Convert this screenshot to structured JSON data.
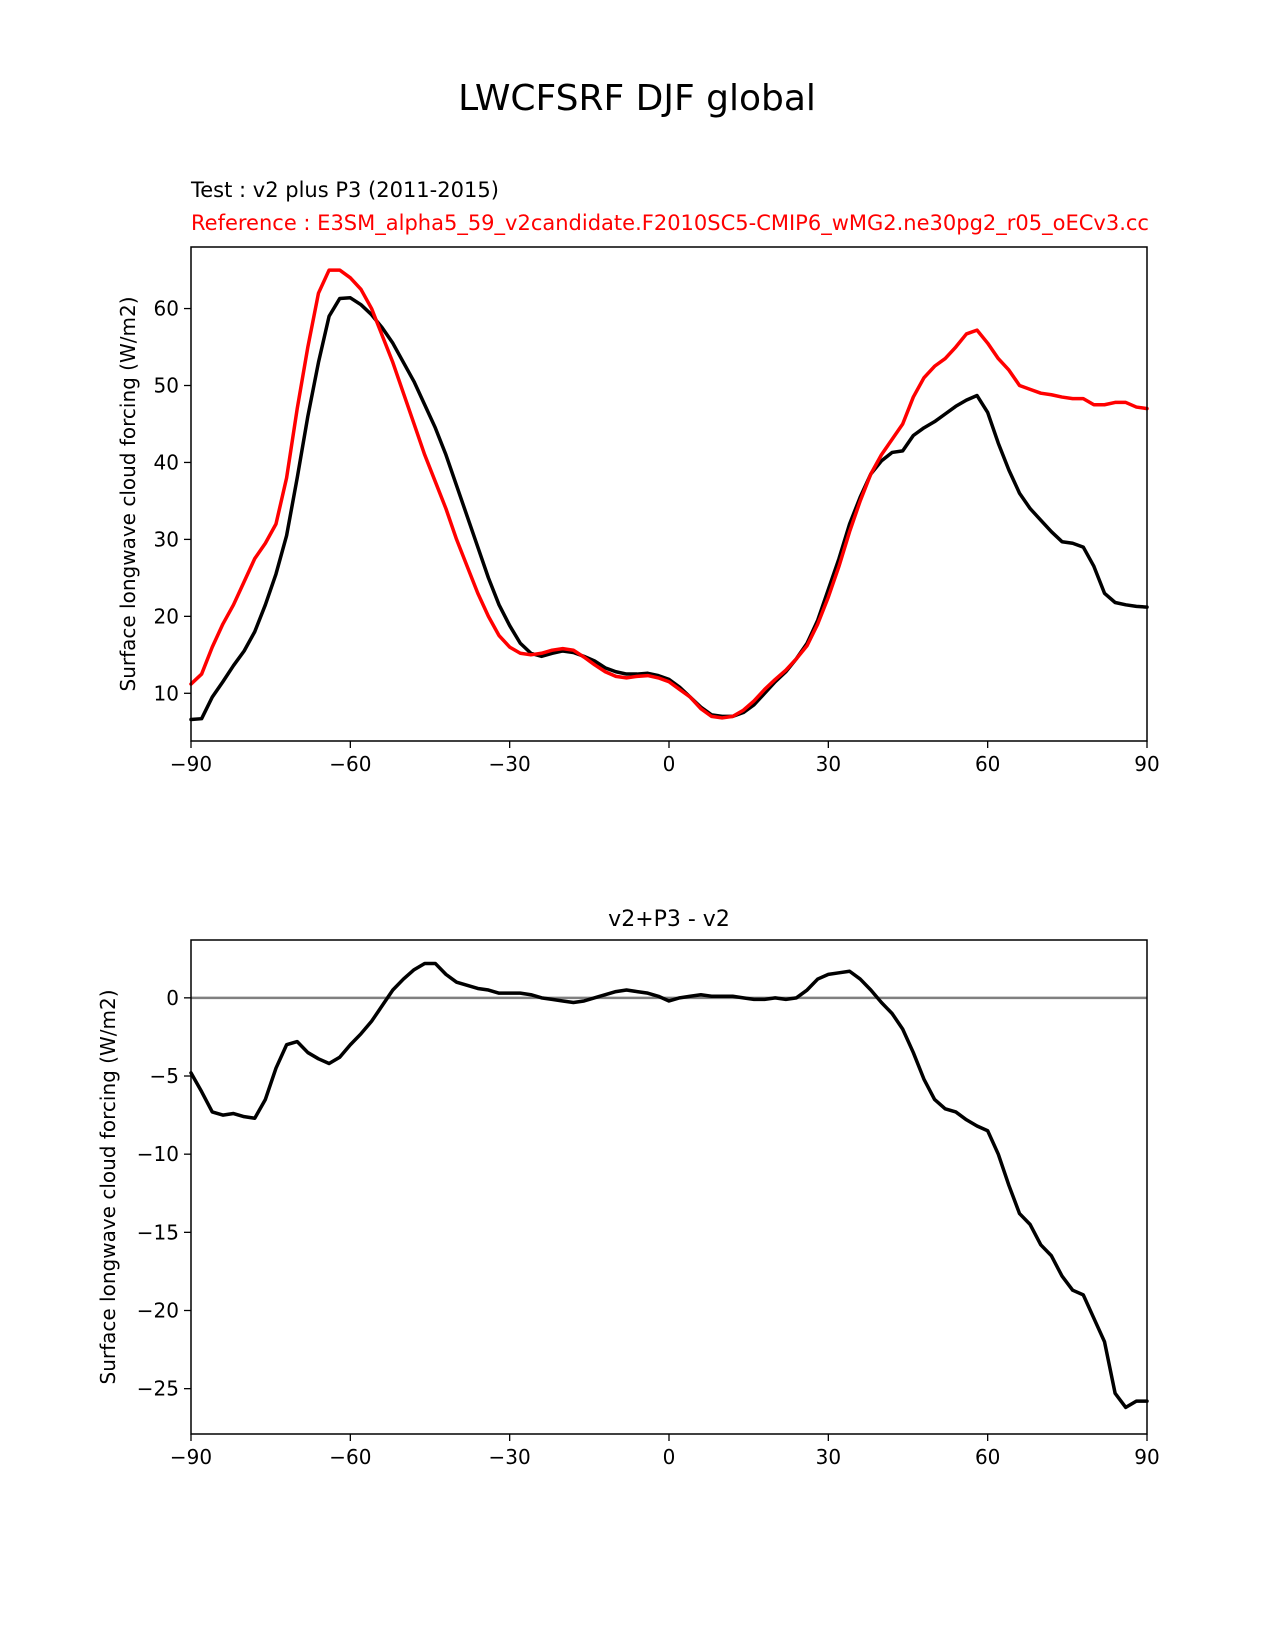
{
  "figure_title": "LWCFSRF DJF global",
  "chart_data": [
    {
      "type": "line",
      "subtitle_test": "Test : v2 plus P3 (2011-2015)",
      "subtitle_reference": "Reference : E3SM_alpha5_59_v2candidate.F2010SC5-CMIP6_wMG2.ne30pg2_r05_oECv3.cc",
      "xlabel": "",
      "ylabel": "Surface longwave cloud forcing (W/m2)",
      "xlim": [
        -90,
        90
      ],
      "ylim": [
        3.8,
        68
      ],
      "xticks": [
        "−90",
        "−60",
        "−30",
        "0",
        "30",
        "60",
        "90"
      ],
      "yticks": [
        "10",
        "20",
        "30",
        "40",
        "50",
        "60"
      ],
      "grid": false,
      "series": [
        {
          "name": "Test : v2 plus P3 (2011-2015)",
          "color": "#000000",
          "x": [
            -90,
            -88,
            -86,
            -84,
            -82,
            -80,
            -78,
            -76,
            -74,
            -72,
            -70,
            -68,
            -66,
            -64,
            -62,
            -60,
            -58,
            -56,
            -54,
            -52,
            -50,
            -48,
            -46,
            -44,
            -42,
            -40,
            -38,
            -36,
            -34,
            -32,
            -30,
            -28,
            -26,
            -24,
            -22,
            -20,
            -18,
            -16,
            -14,
            -12,
            -10,
            -8,
            -6,
            -4,
            -2,
            0,
            2,
            4,
            6,
            8,
            10,
            12,
            14,
            16,
            18,
            20,
            22,
            24,
            26,
            28,
            30,
            32,
            34,
            36,
            38,
            40,
            42,
            44,
            46,
            48,
            50,
            52,
            54,
            56,
            58,
            60,
            62,
            64,
            66,
            68,
            70,
            72,
            74,
            76,
            78,
            80,
            82,
            84,
            86,
            88,
            90
          ],
          "values": [
            6.6,
            6.7,
            9.5,
            11.5,
            13.6,
            15.5,
            18,
            21.5,
            25.5,
            30.5,
            38,
            46,
            53,
            59,
            61.3,
            61.4,
            60.5,
            59.2,
            57.5,
            55.5,
            53,
            50.5,
            47.5,
            44.5,
            41,
            37,
            33,
            29,
            25,
            21.5,
            18.8,
            16.5,
            15.2,
            14.8,
            15.2,
            15.5,
            15.3,
            14.8,
            14.2,
            13.3,
            12.8,
            12.5,
            12.5,
            12.6,
            12.3,
            11.8,
            10.8,
            9.5,
            8.2,
            7.2,
            7,
            7,
            7.5,
            8.5,
            10,
            11.5,
            12.8,
            14.5,
            16.5,
            19.5,
            23.5,
            27.5,
            32,
            35.5,
            38.5,
            40.2,
            41.3,
            41.5,
            43.5,
            44.5,
            45.3,
            46.3,
            47.3,
            48.1,
            48.7,
            46.5,
            42.5,
            39,
            36,
            34,
            32.5,
            31,
            29.7,
            29.5,
            29,
            26.5,
            23,
            21.8,
            21.5,
            21.3,
            21.2
          ]
        },
        {
          "name": "Reference : E3SM_alpha5_59_v2candidate.F2010SC5-CMIP6_wMG2.ne30pg2_r05_oECv3.cc",
          "color": "#ff0000",
          "x": [
            -90,
            -88,
            -86,
            -84,
            -82,
            -80,
            -78,
            -76,
            -74,
            -72,
            -70,
            -68,
            -66,
            -64,
            -62,
            -60,
            -58,
            -56,
            -54,
            -52,
            -50,
            -48,
            -46,
            -44,
            -42,
            -40,
            -38,
            -36,
            -34,
            -32,
            -30,
            -28,
            -26,
            -24,
            -22,
            -20,
            -18,
            -16,
            -14,
            -12,
            -10,
            -8,
            -6,
            -4,
            -2,
            0,
            2,
            4,
            6,
            8,
            10,
            12,
            14,
            16,
            18,
            20,
            22,
            24,
            26,
            28,
            30,
            32,
            34,
            36,
            38,
            40,
            42,
            44,
            46,
            48,
            50,
            52,
            54,
            56,
            58,
            60,
            62,
            64,
            66,
            68,
            70,
            72,
            74,
            76,
            78,
            80,
            82,
            84,
            86,
            88,
            90
          ],
          "values": [
            11.2,
            12.5,
            16,
            19,
            21.5,
            24.5,
            27.5,
            29.5,
            32,
            38,
            47,
            55,
            62,
            65,
            65,
            64,
            62.5,
            60,
            56.5,
            53,
            49,
            45,
            41,
            37.5,
            34,
            30,
            26.5,
            23,
            20,
            17.5,
            16,
            15.2,
            15,
            15.2,
            15.6,
            15.8,
            15.6,
            14.7,
            13.7,
            12.8,
            12.2,
            12,
            12.2,
            12.3,
            12,
            11.5,
            10.5,
            9.5,
            8,
            7,
            6.8,
            7,
            7.8,
            9,
            10.5,
            11.8,
            13,
            14.5,
            16.2,
            19,
            22.5,
            26.5,
            31,
            35,
            38.5,
            41,
            43,
            45,
            48.5,
            51,
            52.5,
            53.5,
            55,
            56.7,
            57.2,
            55.5,
            53.5,
            52,
            50,
            49.5,
            49,
            48.8,
            48.5,
            48.3,
            48.3,
            47.5,
            47.5,
            47.8,
            47.8,
            47.2,
            47
          ]
        }
      ]
    },
    {
      "type": "line",
      "title": "v2+P3 - v2",
      "xlabel": "",
      "ylabel": "Surface longwave cloud forcing (W/m2)",
      "xlim": [
        -90,
        90
      ],
      "ylim": [
        -27.9,
        3.7
      ],
      "xticks": [
        "−90",
        "−60",
        "−30",
        "0",
        "30",
        "60",
        "90"
      ],
      "yticks": [
        "0",
        "−5",
        "−10",
        "−15",
        "−20",
        "−25"
      ],
      "grid": false,
      "zero_line": {
        "value": 0,
        "color": "#808080"
      },
      "series": [
        {
          "name": "v2+P3 - v2",
          "color": "#000000",
          "x": [
            -90,
            -88,
            -86,
            -84,
            -82,
            -80,
            -78,
            -76,
            -74,
            -72,
            -70,
            -68,
            -66,
            -64,
            -62,
            -60,
            -58,
            -56,
            -54,
            -52,
            -50,
            -48,
            -46,
            -44,
            -42,
            -40,
            -38,
            -36,
            -34,
            -32,
            -30,
            -28,
            -26,
            -24,
            -22,
            -20,
            -18,
            -16,
            -14,
            -12,
            -10,
            -8,
            -6,
            -4,
            -2,
            0,
            2,
            4,
            6,
            8,
            10,
            12,
            14,
            16,
            18,
            20,
            22,
            24,
            26,
            28,
            30,
            32,
            34,
            36,
            38,
            40,
            42,
            44,
            46,
            48,
            50,
            52,
            54,
            56,
            58,
            60,
            62,
            64,
            66,
            68,
            70,
            72,
            74,
            76,
            78,
            80,
            82,
            84,
            86,
            88,
            90
          ],
          "values": [
            -4.8,
            -6,
            -7.3,
            -7.5,
            -7.4,
            -7.6,
            -7.7,
            -6.5,
            -4.5,
            -3,
            -2.8,
            -3.5,
            -3.9,
            -4.2,
            -3.8,
            -3,
            -2.3,
            -1.5,
            -0.5,
            0.5,
            1.2,
            1.8,
            2.2,
            2.2,
            1.5,
            1,
            0.8,
            0.6,
            0.5,
            0.3,
            0.3,
            0.3,
            0.2,
            0,
            -0.1,
            -0.2,
            -0.3,
            -0.2,
            0,
            0.2,
            0.4,
            0.5,
            0.4,
            0.3,
            0.1,
            -0.2,
            0,
            0.1,
            0.2,
            0.1,
            0.1,
            0.1,
            0,
            -0.1,
            -0.1,
            0,
            -0.1,
            0,
            0.5,
            1.2,
            1.5,
            1.6,
            1.7,
            1.2,
            0.5,
            -0.3,
            -1,
            -2,
            -3.5,
            -5.2,
            -6.5,
            -7.1,
            -7.3,
            -7.8,
            -8.2,
            -8.5,
            -10,
            -12,
            -13.8,
            -14.5,
            -15.8,
            -16.5,
            -17.8,
            -18.7,
            -19,
            -20.5,
            -22,
            -25.3,
            -26.2,
            -25.8,
            -25.8
          ]
        }
      ]
    }
  ]
}
